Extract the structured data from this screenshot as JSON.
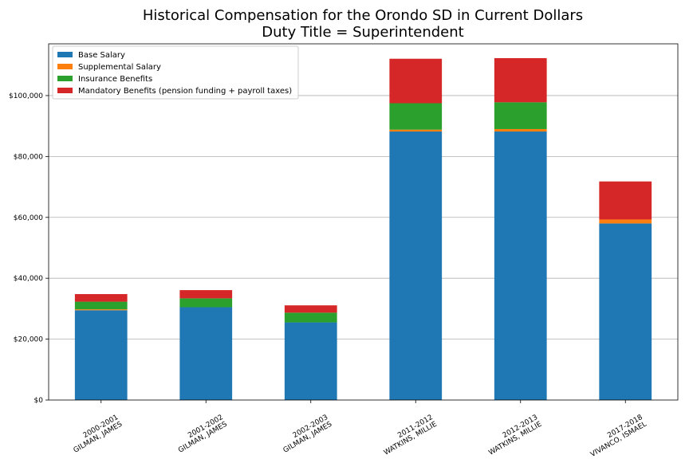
{
  "chart_data": {
    "type": "bar",
    "stacked": true,
    "title": "Historical Compensation for the Orondo SD in Current Dollars",
    "subtitle": "Duty Title = Superintendent",
    "xlabel": "",
    "ylabel": "",
    "ylim": [
      0,
      117000
    ],
    "yticks": [
      0,
      20000,
      40000,
      60000,
      80000,
      100000
    ],
    "ytick_labels": [
      "$0",
      "$20,000",
      "$40,000",
      "$60,000",
      "$80,000",
      "$100,000"
    ],
    "grid": "horizontal",
    "legend_position": "top-left",
    "categories": [
      [
        "2000-2001",
        "GILMAN, JAMES"
      ],
      [
        "2001-2002",
        "GILMAN, JAMES"
      ],
      [
        "2002-2003",
        "GILMAN, JAMES"
      ],
      [
        "2011-2012",
        "WATKINS, MILLIE"
      ],
      [
        "2012-2013",
        "WATKINS, MILLIE"
      ],
      [
        "2017-2018",
        "VIVANCO, ISMAEL"
      ]
    ],
    "series": [
      {
        "name": "Base Salary",
        "color": "#1f77b4",
        "values": [
          29500,
          30500,
          25500,
          88200,
          88200,
          58000
        ]
      },
      {
        "name": "Supplemental Salary",
        "color": "#ff7f0e",
        "values": [
          300,
          0,
          0,
          600,
          800,
          1300
        ]
      },
      {
        "name": "Insurance Benefits",
        "color": "#2ca02c",
        "values": [
          2500,
          2900,
          3200,
          8700,
          8800,
          0
        ]
      },
      {
        "name": "Mandatory Benefits (pension funding + payroll taxes)",
        "color": "#d62728",
        "values": [
          2500,
          2700,
          2400,
          14600,
          14500,
          12500
        ]
      }
    ]
  }
}
